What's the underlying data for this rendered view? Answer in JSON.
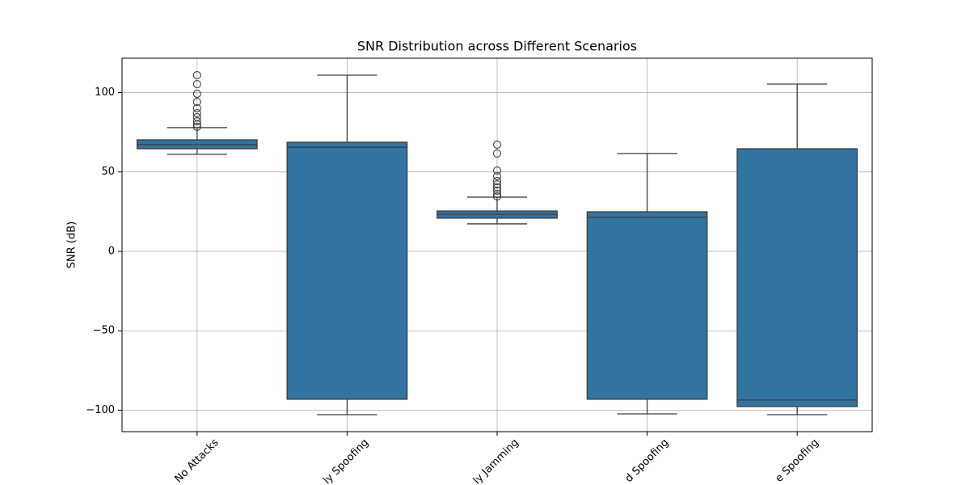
{
  "chart_data": {
    "type": "box",
    "title": "SNR Distribution across Different Scenarios",
    "y_label": "SNR (dB)",
    "categories": [
      "No Attacks",
      "ly Spoofing",
      "ly Jamming",
      "d Spoofing",
      "e Spoofing"
    ],
    "color": "#3274a1",
    "boxes": [
      {
        "whislo": 61.1,
        "q1": 64.6,
        "med": 67.2,
        "q3": 70.2,
        "whishi": 77.9,
        "fliers": [
          110.9,
          105.3,
          99.2,
          94.1,
          90.1,
          87.0,
          84.5,
          81.9,
          79.9,
          78.4
        ]
      },
      {
        "whislo": -102.8,
        "q1": -93.1,
        "med": 65.6,
        "q3": 68.7,
        "whishi": 110.9,
        "fliers": []
      },
      {
        "whislo": 17.3,
        "q1": 20.9,
        "med": 23.4,
        "q3": 25.4,
        "whishi": 34.1,
        "fliers": [
          67.2,
          61.6,
          50.9,
          47.3,
          44.3,
          42.2,
          40.2,
          38.2,
          36.1,
          34.6
        ]
      },
      {
        "whislo": -102.3,
        "q1": -93.1,
        "med": 21.4,
        "q3": 24.9,
        "whishi": 61.6,
        "fliers": []
      },
      {
        "whislo": -102.8,
        "q1": -97.7,
        "med": -93.6,
        "q3": 64.6,
        "whishi": 105.3,
        "fliers": []
      }
    ],
    "ylim": [
      -113.5,
      121.6
    ],
    "yticks": [
      {
        "value": -100,
        "label": "−100"
      },
      {
        "value": -50,
        "label": "−50"
      },
      0,
      50,
      100
    ],
    "grid": true
  }
}
